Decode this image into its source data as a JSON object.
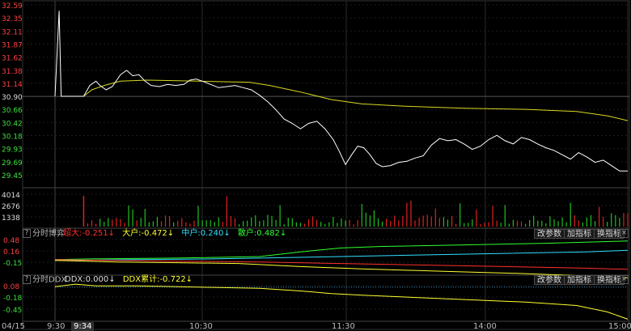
{
  "header": {
    "title": "",
    "right": ""
  },
  "price_axis": {
    "labels": [
      {
        "v": "32.59",
        "c": "#ff4040"
      },
      {
        "v": "32.35",
        "c": "#ff4040"
      },
      {
        "v": "32.11",
        "c": "#ff4040"
      },
      {
        "v": "31.87",
        "c": "#ff4040"
      },
      {
        "v": "31.62",
        "c": "#ff4040"
      },
      {
        "v": "31.38",
        "c": "#ff4040"
      },
      {
        "v": "31.14",
        "c": "#ff4040"
      },
      {
        "v": "30.90",
        "c": "#dddddd"
      },
      {
        "v": "30.66",
        "c": "#3ee03e"
      },
      {
        "v": "30.42",
        "c": "#3ee03e"
      },
      {
        "v": "30.18",
        "c": "#3ee03e"
      },
      {
        "v": "29.93",
        "c": "#3ee03e"
      },
      {
        "v": "29.69",
        "c": "#3ee03e"
      },
      {
        "v": "29.45",
        "c": "#3ee03e"
      }
    ]
  },
  "volume_axis": {
    "labels": [
      "4014",
      "2676",
      "1338"
    ]
  },
  "panel2": {
    "label": "分时博弈",
    "legend": [
      {
        "text": "超大:-0.251↓",
        "color": "#ff3030"
      },
      {
        "text": "大户:-0.472↓",
        "color": "#ffff30"
      },
      {
        "text": "中户:0.240↓",
        "color": "#30e0ff"
      },
      {
        "text": "散户:0.482↓",
        "color": "#30ff30"
      }
    ],
    "axis": [
      {
        "v": "0.48",
        "c": "#ff4040"
      },
      {
        "v": "0.16",
        "c": "#ff4040"
      },
      {
        "v": "-0.15",
        "c": "#3ee03e"
      }
    ],
    "buttons": [
      "改参数",
      "加指标",
      "换指标"
    ]
  },
  "panel3": {
    "label": "分时DDX",
    "legend": [
      {
        "text": "DDX:0.000↓",
        "color": "#dddddd"
      },
      {
        "text": "DDX累计:-0.722↓",
        "color": "#ffff30"
      }
    ],
    "axis": [
      {
        "v": "0.08",
        "c": "#ff4040"
      },
      {
        "v": "-0.18",
        "c": "#3ee03e"
      },
      {
        "v": "-0.45",
        "c": "#3ee03e"
      }
    ],
    "buttons": [
      "改参数",
      "加指标",
      "换指标"
    ]
  },
  "time_axis": {
    "date": "04/15",
    "labels": [
      "9:30",
      "10:30",
      "11:30",
      "14:00",
      "15:00"
    ],
    "cursor": "9:34"
  },
  "chart_data": {
    "type": "line",
    "title": "",
    "x_labels": [
      "9:30",
      "10:30",
      "11:30",
      "14:00",
      "15:00"
    ],
    "price": {
      "prev_close": 30.9,
      "ylim": [
        29.45,
        32.59
      ],
      "points": [
        [
          0,
          30.9
        ],
        [
          2,
          32.48
        ],
        [
          3,
          30.9
        ],
        [
          14,
          30.9
        ],
        [
          17,
          31.1
        ],
        [
          20,
          31.18
        ],
        [
          22,
          31.1
        ],
        [
          25,
          31.02
        ],
        [
          28,
          31.08
        ],
        [
          32,
          31.3
        ],
        [
          35,
          31.38
        ],
        [
          38,
          31.28
        ],
        [
          41,
          31.3
        ],
        [
          44,
          31.18
        ],
        [
          47,
          31.1
        ],
        [
          51,
          31.08
        ],
        [
          55,
          31.12
        ],
        [
          59,
          31.1
        ],
        [
          63,
          31.12
        ],
        [
          66,
          31.2
        ],
        [
          69,
          31.22
        ],
        [
          72,
          31.18
        ],
        [
          76,
          31.12
        ],
        [
          80,
          31.06
        ],
        [
          84,
          31.08
        ],
        [
          88,
          31.1
        ],
        [
          92,
          31.06
        ],
        [
          96,
          31.02
        ],
        [
          100,
          30.92
        ],
        [
          104,
          30.8
        ],
        [
          108,
          30.65
        ],
        [
          112,
          30.48
        ],
        [
          116,
          30.4
        ],
        [
          120,
          30.3
        ],
        [
          124,
          30.4
        ],
        [
          128,
          30.44
        ],
        [
          132,
          30.3
        ],
        [
          136,
          30.1
        ],
        [
          139,
          29.88
        ],
        [
          142,
          29.64
        ],
        [
          145,
          29.82
        ],
        [
          148,
          29.98
        ],
        [
          151,
          29.95
        ],
        [
          154,
          29.82
        ],
        [
          157,
          29.66
        ],
        [
          160,
          29.6
        ],
        [
          164,
          29.62
        ],
        [
          168,
          29.68
        ],
        [
          172,
          29.7
        ],
        [
          176,
          29.76
        ],
        [
          180,
          29.8
        ],
        [
          184,
          30.0
        ],
        [
          188,
          30.12
        ],
        [
          192,
          30.08
        ],
        [
          196,
          30.1
        ],
        [
          200,
          30.02
        ],
        [
          204,
          29.92
        ],
        [
          208,
          29.98
        ],
        [
          212,
          30.1
        ],
        [
          216,
          30.18
        ],
        [
          220,
          30.08
        ],
        [
          224,
          30.02
        ],
        [
          228,
          30.14
        ],
        [
          232,
          30.1
        ],
        [
          236,
          30.02
        ],
        [
          240,
          29.95
        ],
        [
          244,
          29.9
        ],
        [
          248,
          29.82
        ],
        [
          252,
          29.74
        ],
        [
          256,
          29.86
        ],
        [
          260,
          29.78
        ],
        [
          264,
          29.68
        ],
        [
          268,
          29.72
        ],
        [
          272,
          29.62
        ],
        [
          276,
          29.52
        ],
        [
          280,
          29.52
        ]
      ]
    },
    "avg_price": {
      "points": [
        [
          14,
          30.9
        ],
        [
          18,
          31.02
        ],
        [
          24,
          31.1
        ],
        [
          32,
          31.18
        ],
        [
          45,
          31.2
        ],
        [
          70,
          31.18
        ],
        [
          95,
          31.16
        ],
        [
          105,
          31.1
        ],
        [
          120,
          30.98
        ],
        [
          135,
          30.84
        ],
        [
          150,
          30.76
        ],
        [
          170,
          30.72
        ],
        [
          200,
          30.68
        ],
        [
          230,
          30.66
        ],
        [
          255,
          30.62
        ],
        [
          270,
          30.54
        ],
        [
          280,
          30.45
        ]
      ]
    },
    "volume_ylim": [
      0,
      5352
    ],
    "boyi": {
      "ylim": [
        -0.4,
        0.6
      ],
      "series": [
        {
          "name": "散户",
          "color": "#30ff30",
          "points": [
            [
              0,
              0.0
            ],
            [
              20,
              0.02
            ],
            [
              60,
              0.04
            ],
            [
              100,
              0.08
            ],
            [
              120,
              0.2
            ],
            [
              140,
              0.3
            ],
            [
              160,
              0.34
            ],
            [
              200,
              0.38
            ],
            [
              240,
              0.42
            ],
            [
              280,
              0.48
            ]
          ]
        },
        {
          "name": "中户",
          "color": "#30e0ff",
          "points": [
            [
              0,
              -0.02
            ],
            [
              40,
              0.0
            ],
            [
              80,
              0.02
            ],
            [
              100,
              0.04
            ],
            [
              140,
              0.08
            ],
            [
              180,
              0.12
            ],
            [
              220,
              0.16
            ],
            [
              260,
              0.2
            ],
            [
              280,
              0.24
            ]
          ]
        },
        {
          "name": "超大",
          "color": "#ff3030",
          "points": [
            [
              0,
              0.0
            ],
            [
              30,
              -0.02
            ],
            [
              60,
              -0.04
            ],
            [
              100,
              -0.06
            ],
            [
              140,
              -0.1
            ],
            [
              180,
              -0.14
            ],
            [
              220,
              -0.18
            ],
            [
              260,
              -0.22
            ],
            [
              280,
              -0.25
            ]
          ]
        },
        {
          "name": "大户",
          "color": "#ffff30",
          "points": [
            [
              0,
              -0.02
            ],
            [
              30,
              -0.06
            ],
            [
              60,
              -0.08
            ],
            [
              90,
              -0.1
            ],
            [
              120,
              -0.18
            ],
            [
              150,
              -0.24
            ],
            [
              190,
              -0.3
            ],
            [
              230,
              -0.36
            ],
            [
              260,
              -0.42
            ],
            [
              280,
              -0.47
            ]
          ]
        }
      ]
    },
    "ddx": {
      "ylim": [
        -0.75,
        0.12
      ],
      "series": [
        {
          "name": "DDX累计",
          "color": "#ffff30",
          "points": [
            [
              0,
              0.04
            ],
            [
              10,
              0.1
            ],
            [
              20,
              0.06
            ],
            [
              40,
              0.06
            ],
            [
              60,
              0.04
            ],
            [
              80,
              0.02
            ],
            [
              100,
              0.0
            ],
            [
              120,
              -0.06
            ],
            [
              135,
              -0.12
            ],
            [
              150,
              -0.16
            ],
            [
              170,
              -0.2
            ],
            [
              200,
              -0.26
            ],
            [
              230,
              -0.32
            ],
            [
              255,
              -0.4
            ],
            [
              270,
              -0.55
            ],
            [
              280,
              -0.72
            ]
          ]
        }
      ]
    }
  }
}
